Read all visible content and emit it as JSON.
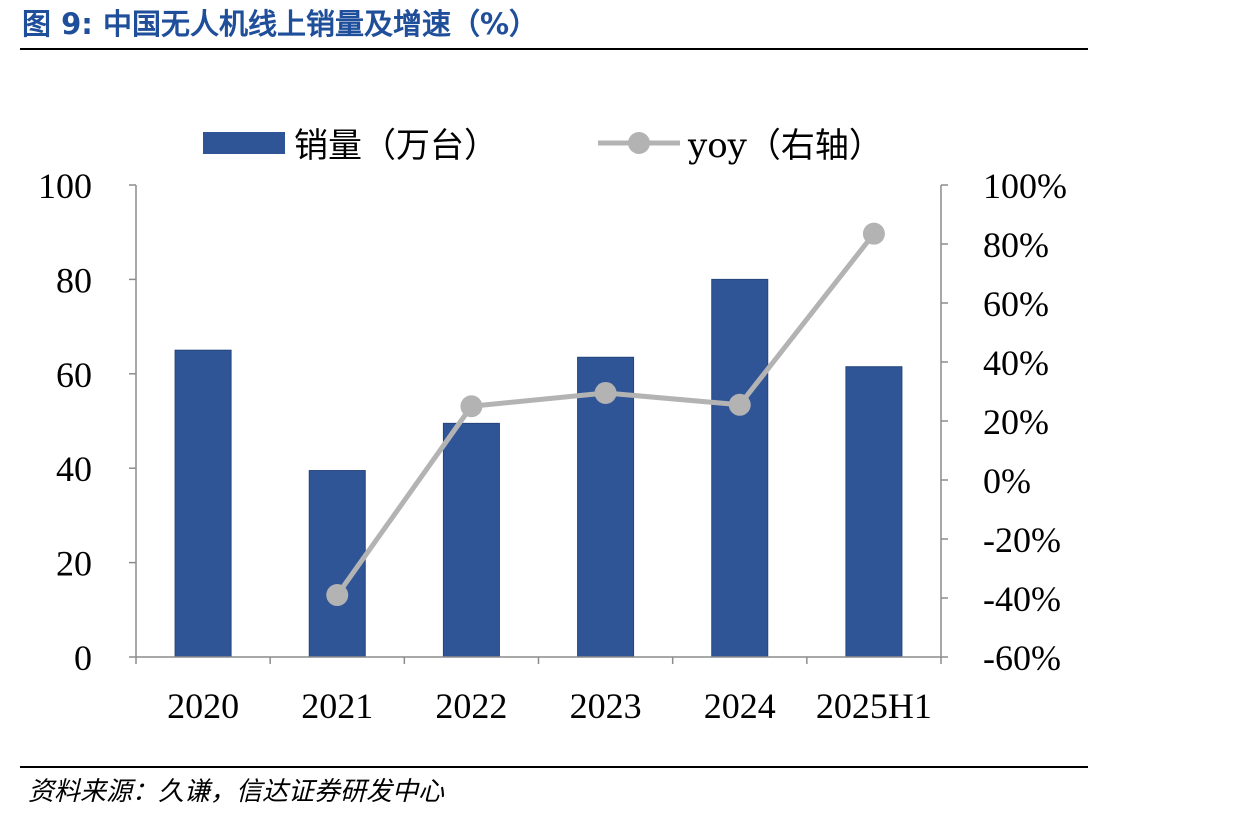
{
  "title": "图 9:  中国无人机线上销量及增速（%）",
  "source": "资料来源：久谦，信达证券研发中心",
  "colors": {
    "bar": "#2f5597",
    "line": "#b3b3b3",
    "title": "#1f4e9a"
  },
  "chart_data": {
    "type": "bar",
    "categories": [
      "2020",
      "2021",
      "2022",
      "2023",
      "2024",
      "2025H1"
    ],
    "series": [
      {
        "name": "销量（万台）",
        "type": "bar",
        "axis": "left",
        "values": [
          65,
          39.5,
          49.5,
          63.5,
          80,
          61.5
        ]
      },
      {
        "name": "yoy（右轴）",
        "type": "line",
        "axis": "right",
        "values": [
          null,
          -39,
          25,
          29.5,
          25.5,
          83.5
        ]
      }
    ],
    "ylim": [
      0,
      100
    ],
    "yticks": [
      "0",
      "20",
      "40",
      "60",
      "80",
      "100"
    ],
    "y2lim": [
      -60,
      100
    ],
    "y2ticks": [
      "-60%",
      "-40%",
      "-20%",
      "0%",
      "20%",
      "40%",
      "60%",
      "80%",
      "100%"
    ],
    "legend_position": "top",
    "grid": false
  }
}
